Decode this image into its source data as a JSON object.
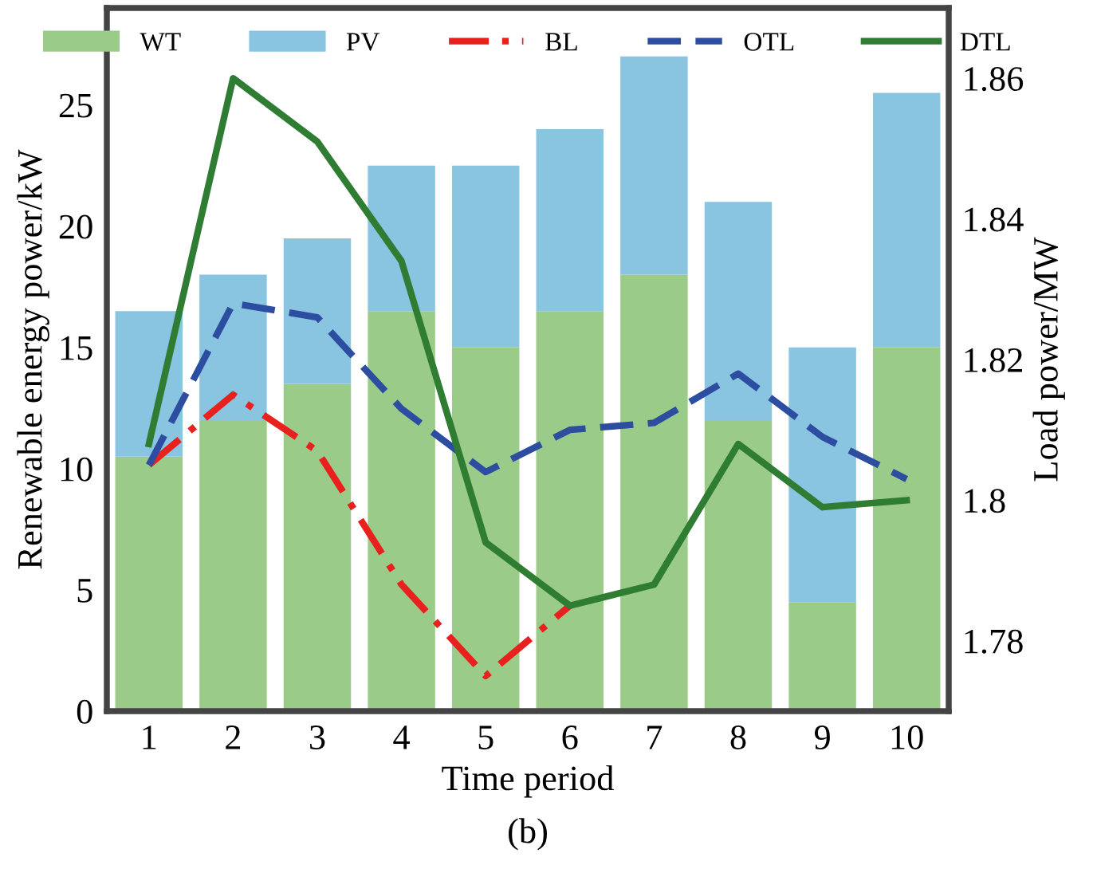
{
  "chart_data": {
    "type": "bar",
    "stacked": true,
    "xlabel": "Time period",
    "ylabel": "Renewable energy power/kW",
    "y2label": "Load power/MW",
    "categories": [
      "1",
      "2",
      "3",
      "4",
      "5",
      "6",
      "7",
      "8",
      "9",
      "10"
    ],
    "series": [
      {
        "name": "WT",
        "color": "#9bcb89",
        "values": [
          10.5,
          12,
          13.5,
          16.5,
          15,
          16.5,
          18,
          12,
          4.5,
          15
        ]
      },
      {
        "name": "PV",
        "color": "#89c4e1",
        "values": [
          6,
          6,
          6,
          6,
          7.5,
          7.5,
          9,
          9,
          10.5,
          10.5
        ]
      },
      {
        "name": "BL",
        "type": "line",
        "axis": "y2",
        "color": "#e8201e",
        "line_style": "dashdot",
        "values": [
          1.805,
          1.815,
          1.807,
          1.788,
          1.775,
          1.785,
          null,
          null,
          null,
          null
        ]
      },
      {
        "name": "OTL",
        "type": "line",
        "axis": "y2",
        "color": "#2d4ea0",
        "line_style": "dashed",
        "values": [
          1.805,
          1.828,
          1.826,
          1.813,
          1.804,
          1.81,
          1.811,
          1.818,
          1.809,
          1.803
        ]
      },
      {
        "name": "DTL",
        "type": "line",
        "axis": "y2",
        "color": "#2e7d32",
        "line_style": "solid",
        "values": [
          1.808,
          1.86,
          1.851,
          1.834,
          1.794,
          1.785,
          1.788,
          1.808,
          1.799,
          1.8
        ]
      }
    ],
    "ylim": [
      0,
      29
    ],
    "yticks": [
      0,
      5,
      10,
      15,
      20,
      25
    ],
    "y2lim": [
      1.77,
      1.87
    ],
    "y2ticks": [
      {
        "value": 1.78,
        "label": "1.78"
      },
      {
        "value": 1.8,
        "label": "1.8"
      },
      {
        "value": 1.82,
        "label": "1.82"
      },
      {
        "value": 1.84,
        "label": "1.84"
      },
      {
        "value": 1.86,
        "label": "1.86"
      }
    ],
    "legend": "top",
    "grid": false,
    "annotations": [
      "(b)"
    ]
  }
}
